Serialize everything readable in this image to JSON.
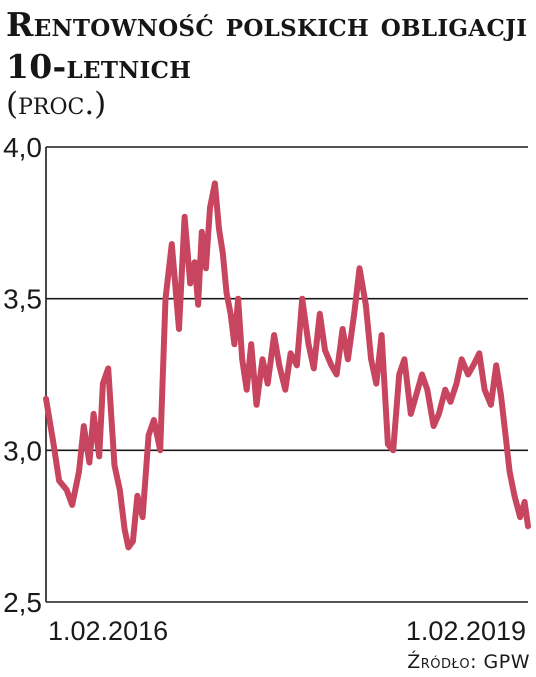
{
  "chart_data": {
    "type": "line",
    "title": "Rentowność polskich obligacji 10-letnich",
    "subtitle": "(proc.)",
    "ylim": [
      2.5,
      4.0
    ],
    "yticks": [
      "4,0",
      "3,5",
      "3,0",
      "2,5"
    ],
    "ytick_values": [
      4.0,
      3.5,
      3.0,
      2.5
    ],
    "xlabels": [
      "1.02.2016",
      "1.02.2019"
    ],
    "xlim": [
      "2015-10-01",
      "2019-04-10"
    ],
    "grid": "horizontal",
    "series_color": "#c8455f",
    "series": [
      {
        "x": [
          "2015-10-01",
          "2015-10-20",
          "2015-11-05",
          "2015-11-25",
          "2015-12-10",
          "2015-12-28",
          "2016-01-10",
          "2016-01-25",
          "2016-02-05",
          "2016-02-20",
          "2016-03-01",
          "2016-03-15",
          "2016-04-01",
          "2016-04-15",
          "2016-04-28",
          "2016-05-08",
          "2016-05-20",
          "2016-06-01",
          "2016-06-15",
          "2016-07-01",
          "2016-07-15",
          "2016-08-01",
          "2016-08-15",
          "2016-09-01",
          "2016-09-20",
          "2016-10-05",
          "2016-10-20",
          "2016-11-01",
          "2016-11-10",
          "2016-11-20",
          "2016-12-01",
          "2016-12-12",
          "2016-12-25",
          "2017-01-05",
          "2017-01-15",
          "2017-01-25",
          "2017-02-05",
          "2017-02-15",
          "2017-02-25",
          "2017-03-08",
          "2017-03-20",
          "2017-04-01",
          "2017-04-15",
          "2017-05-01",
          "2017-05-15",
          "2017-06-01",
          "2017-06-15",
          "2017-07-01",
          "2017-07-15",
          "2017-08-01",
          "2017-08-15",
          "2017-09-01",
          "2017-09-15",
          "2017-10-01",
          "2017-10-15",
          "2017-11-01",
          "2017-11-15",
          "2017-12-01",
          "2017-12-15",
          "2018-01-01",
          "2018-01-15",
          "2018-02-01",
          "2018-02-15",
          "2018-03-01",
          "2018-03-15",
          "2018-04-01",
          "2018-04-15",
          "2018-05-01",
          "2018-05-15",
          "2018-06-01",
          "2018-06-15",
          "2018-07-01",
          "2018-07-15",
          "2018-08-01",
          "2018-08-15",
          "2018-09-01",
          "2018-09-15",
          "2018-10-01",
          "2018-10-15",
          "2018-11-01",
          "2018-11-15",
          "2018-12-01",
          "2018-12-15",
          "2019-01-01",
          "2019-01-15",
          "2019-01-28",
          "2019-02-08",
          "2019-02-20",
          "2019-03-05",
          "2019-03-20",
          "2019-04-01",
          "2019-04-10"
        ],
        "values": [
          3.17,
          3.03,
          2.9,
          2.87,
          2.82,
          2.93,
          3.08,
          2.96,
          3.12,
          2.98,
          3.22,
          3.27,
          2.95,
          2.87,
          2.74,
          2.68,
          2.7,
          2.85,
          2.78,
          3.05,
          3.1,
          3.0,
          3.5,
          3.68,
          3.4,
          3.77,
          3.55,
          3.62,
          3.48,
          3.72,
          3.6,
          3.8,
          3.88,
          3.73,
          3.65,
          3.52,
          3.45,
          3.35,
          3.5,
          3.3,
          3.2,
          3.35,
          3.15,
          3.3,
          3.22,
          3.38,
          3.28,
          3.2,
          3.32,
          3.28,
          3.5,
          3.35,
          3.27,
          3.45,
          3.33,
          3.28,
          3.25,
          3.4,
          3.3,
          3.45,
          3.6,
          3.48,
          3.3,
          3.22,
          3.38,
          3.02,
          3.0,
          3.25,
          3.3,
          3.12,
          3.18,
          3.25,
          3.2,
          3.08,
          3.12,
          3.2,
          3.16,
          3.22,
          3.3,
          3.25,
          3.28,
          3.32,
          3.2,
          3.15,
          3.28,
          3.18,
          3.06,
          2.93,
          2.85,
          2.78,
          2.83,
          2.75
        ]
      }
    ]
  },
  "source": "Źródło: GPW"
}
